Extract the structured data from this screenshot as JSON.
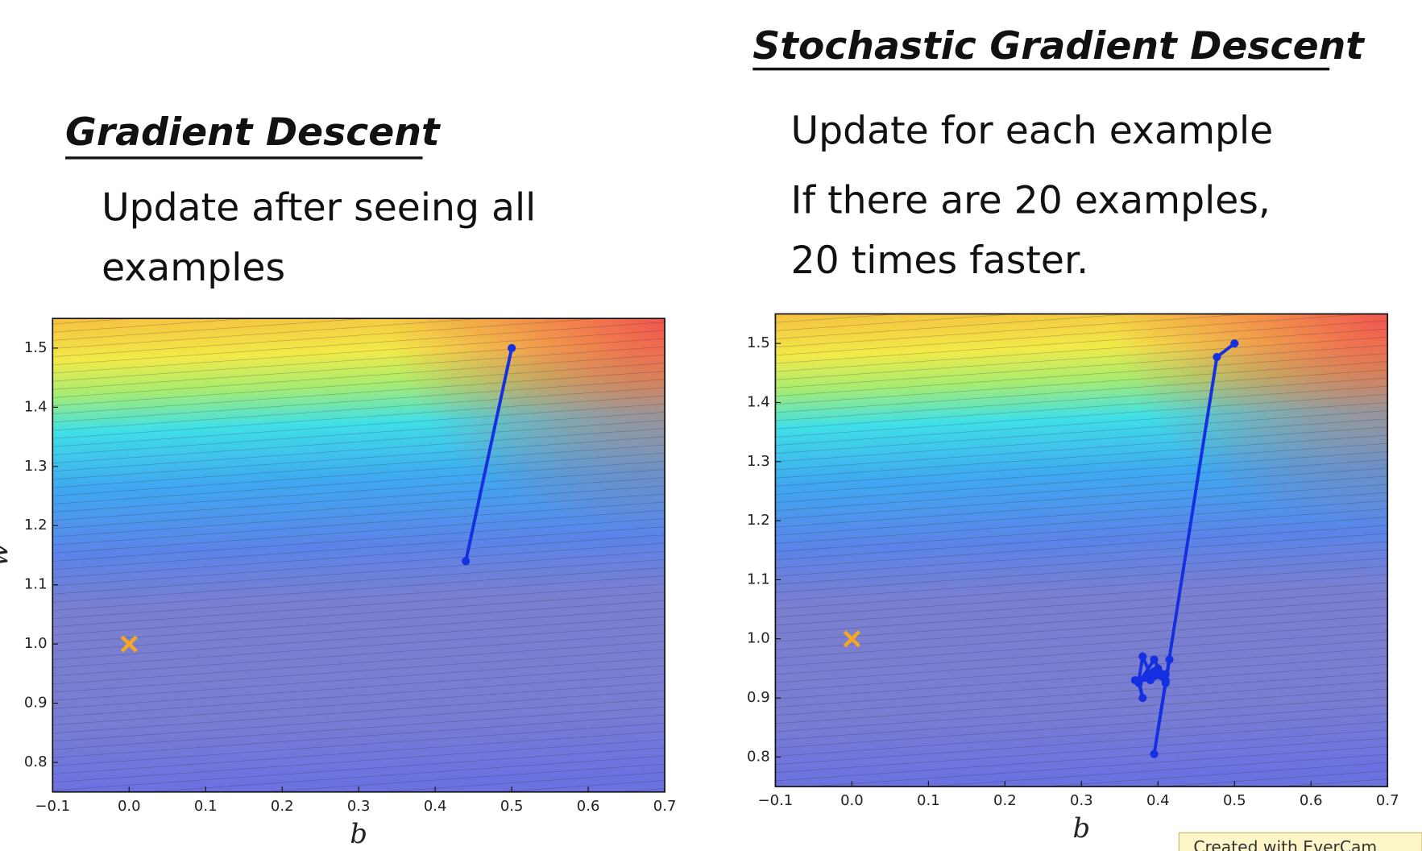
{
  "slide": {
    "left_heading": "Gradient Descent",
    "left_text": [
      "Update after seeing all",
      "examples"
    ],
    "right_heading": "Stochastic Gradient Descent",
    "right_text": [
      "Update for each example",
      "If there are 20 examples,",
      "20 times faster."
    ],
    "badge": "Created with EverCam"
  },
  "chart_data": [
    {
      "type": "line",
      "xlabel": "b",
      "ylabel": "w",
      "xlim": [
        -0.1,
        0.7
      ],
      "ylim": [
        0.75,
        1.55
      ],
      "xticks": [
        {
          "value": -0.1,
          "label": "−0.1"
        },
        {
          "value": 0,
          "label": "0.0"
        },
        0.1,
        0.2,
        0.3,
        0.4,
        0.5,
        0.6,
        0.7
      ],
      "yticks": [
        0.8,
        0.9,
        {
          "value": 1,
          "label": "1.0"
        },
        1.1,
        1.2,
        1.3,
        1.4,
        1.5
      ],
      "series": [
        {
          "color": "#1530e0",
          "marker": "o",
          "x": [
            0.5,
            0.44
          ],
          "values": [
            1.5,
            1.14
          ]
        },
        {
          "color": "#f5a623",
          "marker": "x",
          "x": [
            0
          ],
          "values": [
            1
          ]
        }
      ]
    },
    {
      "type": "line",
      "xlabel": "b",
      "xlim": [
        -0.1,
        0.7
      ],
      "ylim": [
        0.75,
        1.55
      ],
      "xticks": [
        {
          "value": -0.1,
          "label": "−0.1"
        },
        {
          "value": 0,
          "label": "0.0"
        },
        0.1,
        0.2,
        0.3,
        0.4,
        0.5,
        0.6,
        0.7
      ],
      "yticks": [
        0.8,
        0.9,
        {
          "value": 1,
          "label": "1.0"
        },
        1.1,
        1.2,
        1.3,
        1.4,
        1.5
      ],
      "series": [
        {
          "color": "#1530e0",
          "marker": "o",
          "x": [
            0.5,
            0.477,
            0.395,
            0.415,
            0.41,
            0.39,
            0.38,
            0.375,
            0.38,
            0.375,
            0.395,
            0.405,
            0.41,
            0.395,
            0.385,
            0.4,
            0.41,
            0.39,
            0.37,
            0.4
          ],
          "values": [
            1.5,
            1.477,
            0.805,
            0.965,
            0.93,
            0.94,
            0.97,
            0.93,
            0.9,
            0.925,
            0.965,
            0.94,
            0.925,
            0.945,
            0.935,
            0.95,
            0.94,
            0.93,
            0.93,
            0.945
          ]
        },
        {
          "color": "#f5a623",
          "marker": "x",
          "x": [
            0
          ],
          "values": [
            1
          ]
        }
      ]
    }
  ]
}
